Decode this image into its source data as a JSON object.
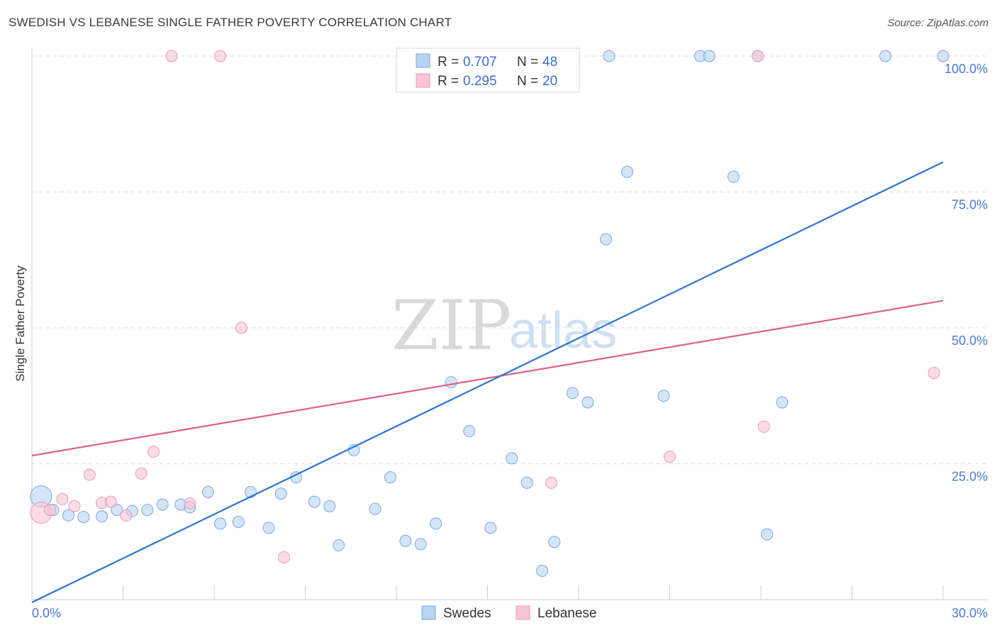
{
  "header": {
    "title": "SWEDISH VS LEBANESE SINGLE FATHER POVERTY CORRELATION CHART",
    "source": "Source: ZipAtlas.com"
  },
  "watermark": {
    "zip": "ZIP",
    "atlas": "atlas"
  },
  "legend": {
    "r_label": "R =",
    "n_label": "N =",
    "swedes": {
      "r": "0.707",
      "n": "48"
    },
    "lebanese": {
      "r": "0.295",
      "n": "20"
    }
  },
  "colors": {
    "swedes_fill": "#b9d3f3",
    "swedes_stroke": "#7aa7e0",
    "swedes_line": "#2f74d0",
    "lebanese_fill": "#f9c5d5",
    "lebanese_stroke": "#e99ab3",
    "lebanese_line": "#e0608a",
    "tick_text": "#4a7bd0"
  },
  "chart_data": {
    "type": "scatter",
    "title": "SWEDISH VS LEBANESE SINGLE FATHER POVERTY CORRELATION CHART",
    "xlabel": "",
    "ylabel": "Single Father Poverty",
    "xlim": [
      0,
      30
    ],
    "ylim": [
      0,
      100
    ],
    "x_tick_labels": [
      "0.0%",
      "30.0%"
    ],
    "y_ticks": [
      25,
      50,
      75,
      100
    ],
    "y_tick_labels": [
      "25.0%",
      "50.0%",
      "75.0%",
      "100.0%"
    ],
    "grid": true,
    "legend_position": "top-center",
    "series": [
      {
        "name": "Swedes",
        "r": 0.707,
        "n": 48,
        "trend": {
          "x": [
            0,
            30
          ],
          "y": [
            -0.5,
            80.5
          ]
        },
        "points": [
          [
            0.3,
            19,
            "large"
          ],
          [
            0.7,
            16.5
          ],
          [
            1.2,
            15.5
          ],
          [
            1.7,
            15.2
          ],
          [
            2.3,
            15.3
          ],
          [
            2.8,
            16.5
          ],
          [
            3.3,
            16.3
          ],
          [
            3.8,
            16.5
          ],
          [
            4.3,
            17.5
          ],
          [
            4.9,
            17.5
          ],
          [
            5.2,
            17
          ],
          [
            5.8,
            19.8
          ],
          [
            6.2,
            14
          ],
          [
            6.8,
            14.3
          ],
          [
            7.2,
            19.8
          ],
          [
            7.8,
            13.2
          ],
          [
            8.2,
            19.5
          ],
          [
            8.7,
            22.5
          ],
          [
            9.3,
            18
          ],
          [
            9.8,
            17.2
          ],
          [
            10.1,
            10
          ],
          [
            10.6,
            27.5
          ],
          [
            11.3,
            16.7
          ],
          [
            11.8,
            22.5
          ],
          [
            12.3,
            10.8
          ],
          [
            12.8,
            10.2
          ],
          [
            13.3,
            14
          ],
          [
            13.8,
            40
          ],
          [
            14.4,
            31
          ],
          [
            15.1,
            13.2
          ],
          [
            15.8,
            26
          ],
          [
            16.3,
            21.5
          ],
          [
            16.8,
            5.3
          ],
          [
            17.2,
            10.6
          ],
          [
            17.8,
            38
          ],
          [
            18.3,
            36.3
          ],
          [
            18.9,
            66.3
          ],
          [
            19.0,
            100
          ],
          [
            19.6,
            78.7
          ],
          [
            20.8,
            37.5
          ],
          [
            22.0,
            100
          ],
          [
            22.3,
            100
          ],
          [
            23.1,
            77.8
          ],
          [
            23.9,
            100
          ],
          [
            24.2,
            12
          ],
          [
            24.7,
            36.3
          ],
          [
            28.1,
            100
          ],
          [
            30.0,
            100
          ]
        ]
      },
      {
        "name": "Lebanese",
        "r": 0.295,
        "n": 20,
        "trend": {
          "x": [
            0,
            30
          ],
          "y": [
            26.5,
            55
          ]
        },
        "points": [
          [
            0.3,
            16,
            "large"
          ],
          [
            0.6,
            16.5
          ],
          [
            1.0,
            18.5
          ],
          [
            1.4,
            17.2
          ],
          [
            1.9,
            23
          ],
          [
            2.3,
            17.8
          ],
          [
            2.6,
            18
          ],
          [
            3.1,
            15.5
          ],
          [
            3.6,
            23.2
          ],
          [
            4.0,
            27.2
          ],
          [
            4.6,
            100
          ],
          [
            5.2,
            17.7
          ],
          [
            6.2,
            100
          ],
          [
            6.9,
            50
          ],
          [
            8.3,
            7.8
          ],
          [
            17.1,
            21.5
          ],
          [
            21.0,
            26.3
          ],
          [
            23.9,
            100
          ],
          [
            24.1,
            31.8
          ],
          [
            29.7,
            41.7
          ]
        ]
      }
    ]
  },
  "footer_legend": {
    "swedes": "Swedes",
    "lebanese": "Lebanese"
  }
}
